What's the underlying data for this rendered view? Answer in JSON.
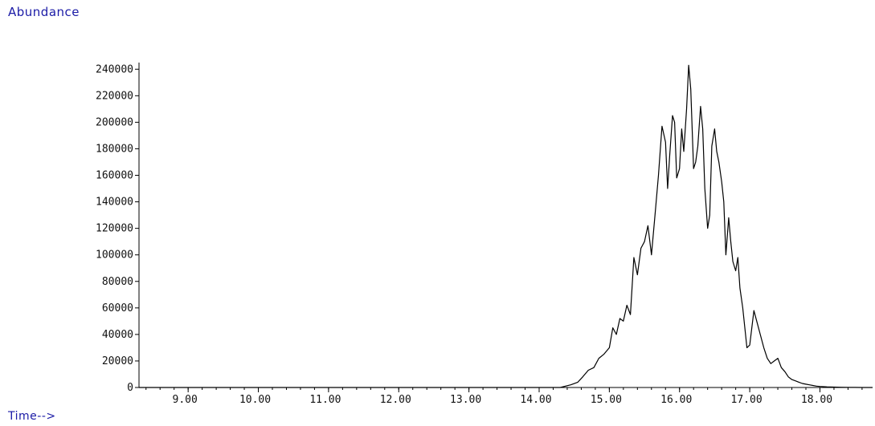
{
  "chart_data": {
    "type": "line",
    "title": "",
    "xlabel": "Time-->",
    "ylabel": "Abundance",
    "xlim": [
      8.3,
      18.75
    ],
    "ylim": [
      0,
      245000
    ],
    "xticks": [
      9.0,
      10.0,
      11.0,
      12.0,
      13.0,
      14.0,
      15.0,
      16.0,
      17.0,
      18.0
    ],
    "xtick_labels": [
      "9.00",
      "10.00",
      "11.00",
      "12.00",
      "13.00",
      "14.00",
      "15.00",
      "16.00",
      "17.00",
      "18.00"
    ],
    "yticks": [
      0,
      20000,
      40000,
      60000,
      80000,
      100000,
      120000,
      140000,
      160000,
      180000,
      200000,
      220000,
      240000
    ],
    "ytick_labels": [
      "0",
      "20000",
      "40000",
      "60000",
      "80000",
      "100000",
      "120000",
      "140000",
      "160000",
      "180000",
      "200000",
      "220000",
      "240000"
    ],
    "grid": false,
    "colors": {
      "line": "#000000",
      "axis": "#000000",
      "label": "#1a1aa6"
    },
    "series": [
      {
        "x": [
          8.3,
          14.3,
          14.45,
          14.55,
          14.62,
          14.7,
          14.78,
          14.85,
          14.92,
          15.0,
          15.05,
          15.1,
          15.15,
          15.2,
          15.25,
          15.3,
          15.35,
          15.4,
          15.45,
          15.5,
          15.55,
          15.6,
          15.65,
          15.7,
          15.75,
          15.8,
          15.83,
          15.86,
          15.9,
          15.93,
          15.96,
          16.0,
          16.03,
          16.06,
          16.1,
          16.13,
          16.16,
          16.2,
          16.23,
          16.26,
          16.3,
          16.33,
          16.36,
          16.4,
          16.43,
          16.46,
          16.5,
          16.53,
          16.56,
          16.6,
          16.63,
          16.66,
          16.7,
          16.73,
          16.76,
          16.8,
          16.83,
          16.86,
          16.9,
          16.93,
          16.96,
          17.0,
          17.03,
          17.06,
          17.1,
          17.15,
          17.2,
          17.25,
          17.3,
          17.35,
          17.4,
          17.45,
          17.5,
          17.55,
          17.6,
          17.65,
          17.7,
          17.75,
          17.8,
          17.85,
          17.9,
          17.95,
          18.0,
          18.1,
          18.2,
          18.3,
          18.4,
          18.5,
          18.6,
          18.75
        ],
        "y": [
          0,
          0,
          2000,
          4000,
          8000,
          13000,
          15000,
          22000,
          25000,
          30000,
          45000,
          40000,
          52000,
          50000,
          62000,
          55000,
          98000,
          85000,
          105000,
          110000,
          122000,
          100000,
          130000,
          160000,
          197000,
          185000,
          150000,
          175000,
          205000,
          200000,
          158000,
          165000,
          195000,
          178000,
          210000,
          243000,
          225000,
          165000,
          170000,
          182000,
          212000,
          195000,
          150000,
          120000,
          130000,
          182000,
          195000,
          178000,
          170000,
          155000,
          140000,
          100000,
          128000,
          110000,
          95000,
          88000,
          98000,
          75000,
          60000,
          45000,
          30000,
          32000,
          45000,
          58000,
          50000,
          40000,
          30000,
          22000,
          18000,
          20000,
          22000,
          15000,
          12000,
          8000,
          6000,
          5000,
          4000,
          3000,
          2500,
          2000,
          1500,
          1000,
          800,
          500,
          300,
          200,
          100,
          50,
          0,
          0
        ]
      }
    ]
  }
}
